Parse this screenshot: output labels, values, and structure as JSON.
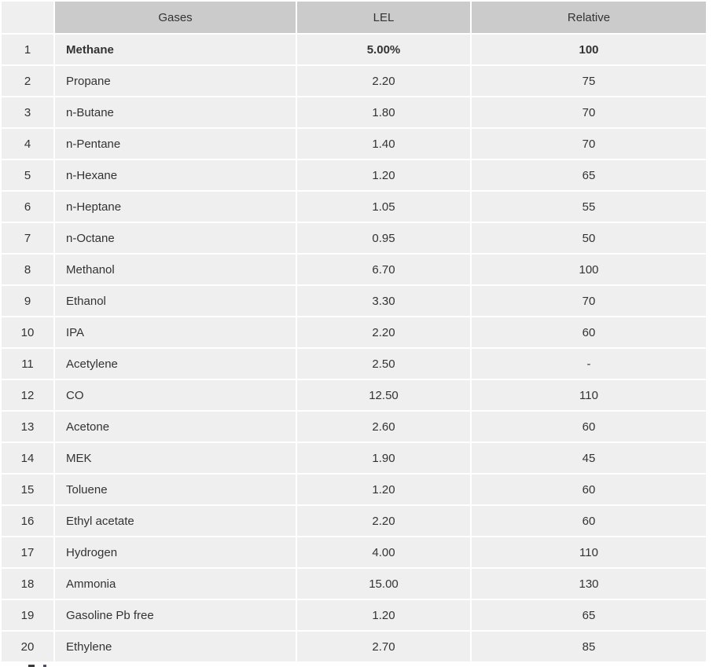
{
  "chart_data": {
    "type": "table",
    "title": "",
    "columns": [
      "",
      "Gases",
      "LEL",
      "Relative"
    ],
    "rows": [
      [
        "1",
        "Methane",
        "5.00%",
        "100"
      ],
      [
        "2",
        "Propane",
        "2.20",
        "75"
      ],
      [
        "3",
        "n-Butane",
        "1.80",
        "70"
      ],
      [
        "4",
        "n-Pentane",
        "1.40",
        "70"
      ],
      [
        "5",
        "n-Hexane",
        "1.20",
        "65"
      ],
      [
        "6",
        "n-Heptane",
        "1.05",
        "55"
      ],
      [
        "7",
        "n-Octane",
        "0.95",
        "50"
      ],
      [
        "8",
        "Methanol",
        "6.70",
        "100"
      ],
      [
        "9",
        "Ethanol",
        "3.30",
        "70"
      ],
      [
        "10",
        "IPA",
        "2.20",
        "60"
      ],
      [
        "11",
        "Acetylene",
        "2.50",
        "-"
      ],
      [
        "12",
        "CO",
        "12.50",
        "110"
      ],
      [
        "13",
        "Acetone",
        "2.60",
        "60"
      ],
      [
        "14",
        "MEK",
        "1.90",
        "45"
      ],
      [
        "15",
        "Toluene",
        "1.20",
        "60"
      ],
      [
        "16",
        "Ethyl acetate",
        "2.20",
        "60"
      ],
      [
        "17",
        "Hydrogen",
        "4.00",
        "110"
      ],
      [
        "18",
        "Ammonia",
        "15.00",
        "130"
      ],
      [
        "19",
        "Gasoline Pb free",
        "1.20",
        "65"
      ],
      [
        "20",
        "Ethylene",
        "2.70",
        "85"
      ]
    ],
    "emphasis_row_index": 0,
    "layout": {
      "legend": "none",
      "grid": "cell-gaps"
    }
  },
  "colors": {
    "header_bg": "#cbcbcb",
    "row_bg": "#efefef",
    "gap": "#ffffff",
    "text": "#333333"
  }
}
